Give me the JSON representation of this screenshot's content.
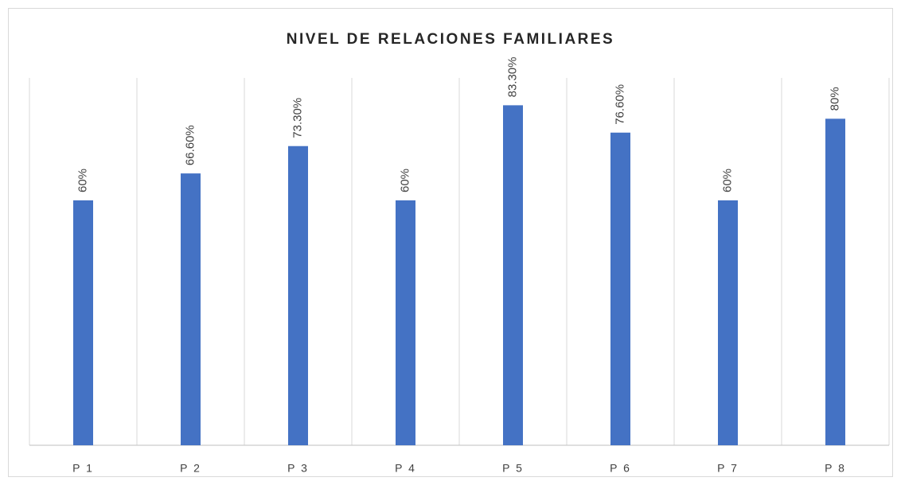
{
  "chart_data": {
    "type": "bar",
    "title": "NIVEL DE RELACIONES FAMILIARES",
    "categories": [
      "P 1",
      "P 2",
      "P 3",
      "P 4",
      "P 5",
      "P 6",
      "P 7",
      "P 8"
    ],
    "values": [
      60,
      66.6,
      73.3,
      60,
      83.3,
      76.6,
      60,
      80
    ],
    "value_labels": [
      "60%",
      "66.60%",
      "73.30%",
      "60%",
      "83.30%",
      "76.60%",
      "60%",
      "80%"
    ],
    "color": "#4472c4",
    "ylim": [
      0,
      90
    ]
  }
}
